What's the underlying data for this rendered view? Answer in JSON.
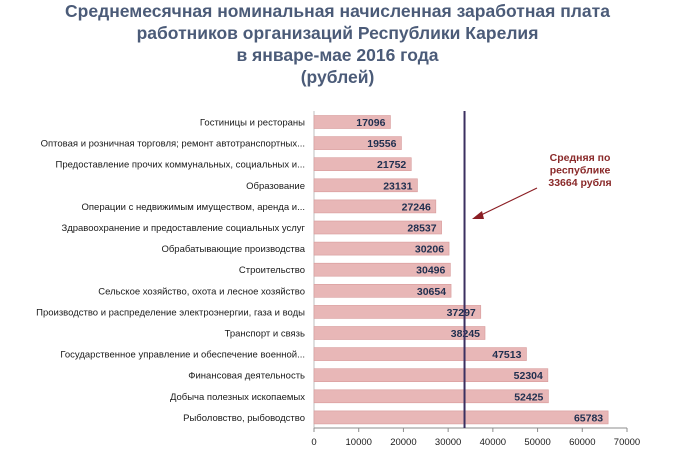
{
  "title_lines": [
    "Среднемесячная номинальная начисленная заработная плата",
    "работников организаций Республики Карелия",
    "в январе-мае 2016 года",
    "(рублей)"
  ],
  "chart_data": {
    "type": "bar",
    "orientation": "horizontal",
    "categories": [
      "Гостиницы и рестораны",
      "Оптовая и розничная торговля; ремонт автотранспортных...",
      "Предоставление прочих коммунальных, социальных и...",
      "Образование",
      "Операции с недвижимым имуществом, аренда и...",
      "Здравоохранение и предоставление социальных услуг",
      "Обрабатывающие производства",
      "Строительство",
      "Сельское хозяйство, охота и лесное хозяйство",
      "Производство и распределение электроэнергии, газа и воды",
      "Транспорт и связь",
      "Государственное управление и обеспечение военной...",
      "Финансовая деятельность",
      "Добыча полезных ископаемых",
      "Рыболовство, рыбоводство"
    ],
    "values": [
      17096,
      19556,
      21752,
      23131,
      27246,
      28537,
      30206,
      30496,
      30654,
      37297,
      38245,
      47513,
      52304,
      52425,
      65783
    ],
    "xlim": [
      0,
      70000
    ],
    "xticks": [
      0,
      10000,
      20000,
      30000,
      40000,
      50000,
      60000,
      70000
    ],
    "reference_line": {
      "value": 33664,
      "label_lines": [
        "Средняя по",
        "республике",
        "33664 рубля"
      ]
    },
    "grid": false,
    "legend": "none"
  },
  "colors": {
    "bar_fill": "#e8b7b7",
    "bar_stroke": "#d79a9a",
    "reference_line": "#3b3060",
    "annotation": "#8a2a2a",
    "arrow": "#8b1e24",
    "title": "#4b5b78",
    "value_label": "#1f2f4f"
  }
}
